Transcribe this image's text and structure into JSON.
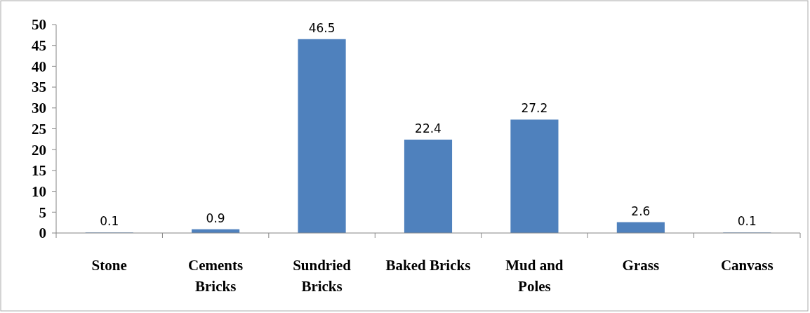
{
  "chart_data": {
    "type": "bar",
    "categories": [
      "Stone",
      "Cements Bricks",
      "Sundried Bricks",
      "Baked Bricks",
      "Mud and Poles",
      "Grass",
      "Canvass"
    ],
    "values": [
      0.1,
      0.9,
      46.5,
      22.4,
      27.2,
      2.6,
      0.1
    ],
    "color": "#4f81bd",
    "ylim": [
      0,
      50
    ],
    "yticks": [
      0,
      5,
      10,
      15,
      20,
      25,
      30,
      35,
      40,
      45,
      50
    ],
    "data_labels": true,
    "grid": false
  }
}
